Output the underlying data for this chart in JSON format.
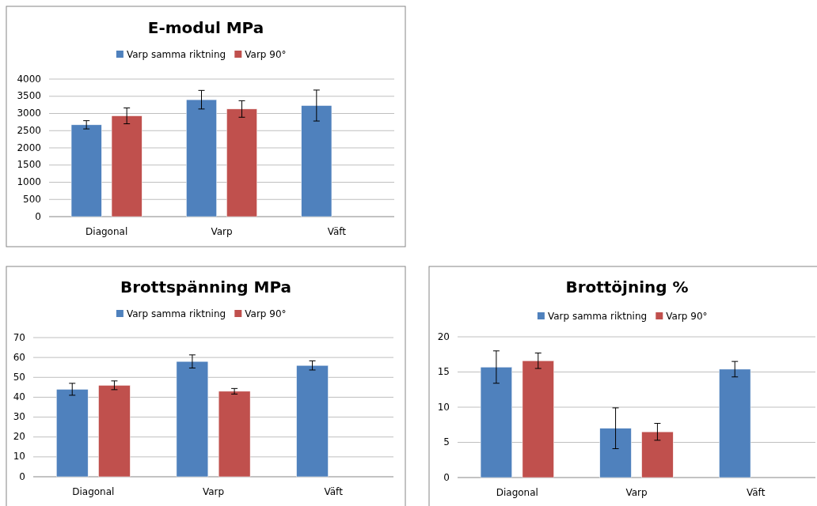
{
  "chart_data": [
    {
      "type": "bar",
      "title": "E-modul MPa",
      "categories": [
        "Diagonal",
        "Varp",
        "Väft"
      ],
      "series": [
        {
          "name": "Varp samma riktning",
          "color": "#4f81bd",
          "values": [
            2670,
            3400,
            3230
          ],
          "errors": [
            120,
            270,
            450
          ]
        },
        {
          "name": "Varp 90°",
          "color": "#c0504d",
          "values": [
            2930,
            3130,
            null
          ],
          "errors": [
            230,
            240,
            null
          ]
        }
      ],
      "ylim": [
        0,
        4000
      ],
      "yticks": [
        0,
        500,
        1000,
        1500,
        2000,
        2500,
        3000,
        3500,
        4000
      ],
      "grid": "y",
      "legend": "top"
    },
    {
      "type": "bar",
      "title": "Brottspänning MPa",
      "categories": [
        "Diagonal",
        "Varp",
        "Väft"
      ],
      "series": [
        {
          "name": "Varp samma riktning",
          "color": "#4f81bd",
          "values": [
            44,
            58,
            56
          ],
          "errors": [
            3,
            3.3,
            2.3
          ]
        },
        {
          "name": "Varp 90°",
          "color": "#c0504d",
          "values": [
            46,
            43,
            null
          ],
          "errors": [
            2.2,
            1.4,
            null
          ]
        }
      ],
      "ylim": [
        0,
        70
      ],
      "yticks": [
        0,
        10,
        20,
        30,
        40,
        50,
        60,
        70
      ],
      "grid": "y",
      "legend": "top"
    },
    {
      "type": "bar",
      "title": "Brottöjning %",
      "categories": [
        "Diagonal",
        "Varp",
        "Väft"
      ],
      "series": [
        {
          "name": "Varp samma riktning",
          "color": "#4f81bd",
          "values": [
            15.7,
            7.0,
            15.4
          ],
          "errors": [
            2.3,
            2.9,
            1.1
          ]
        },
        {
          "name": "Varp 90°",
          "color": "#c0504d",
          "values": [
            16.6,
            6.5,
            null
          ],
          "errors": [
            1.1,
            1.2,
            null
          ]
        }
      ],
      "ylim": [
        0,
        20
      ],
      "yticks": [
        0,
        5,
        10,
        15,
        20
      ],
      "grid": "y",
      "legend": "top"
    }
  ]
}
